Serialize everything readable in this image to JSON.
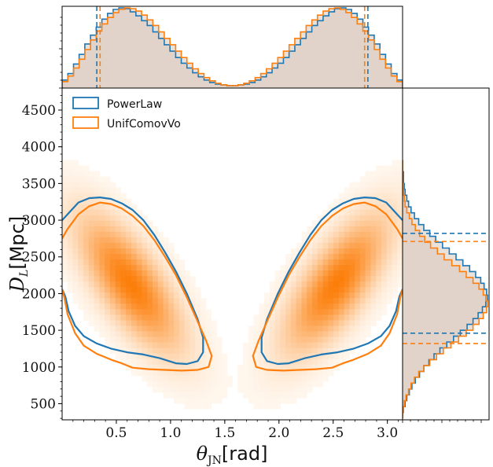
{
  "chart_data": {
    "type": "corner-plot",
    "colors": {
      "powerlaw": "#1f77b4",
      "unifcomovvo": "#ff7f0e",
      "fill": "#d8c8bc"
    },
    "main": {
      "type": "heatmap-contour",
      "xlabel_symbol": "θ",
      "xlabel_sub": "JN",
      "xlabel_unit": "[rad]",
      "ylabel_symbol": "D",
      "ylabel_sub": "L",
      "ylabel_unit": "[Mpc]",
      "xlim": [
        0.0,
        3.14
      ],
      "ylim": [
        280,
        4800
      ],
      "xticks": [
        0.5,
        1.0,
        1.5,
        2.0,
        2.5,
        3.0
      ],
      "xtick_labels": [
        "0.5",
        "1.0",
        "1.5",
        "2.0",
        "2.5",
        "3.0"
      ],
      "yticks": [
        500,
        1000,
        1500,
        2000,
        2500,
        3000,
        3500,
        4000,
        4500
      ],
      "ytick_labels": [
        "500",
        "1000",
        "1500",
        "2000",
        "2500",
        "3000",
        "3500",
        "4000",
        "4500"
      ],
      "density_peaks": [
        {
          "theta": 0.63,
          "dl": 2130
        },
        {
          "theta": 2.53,
          "dl": 2130
        }
      ],
      "contours": [
        {
          "series": "PowerLaw",
          "lobe": "left",
          "points": [
            [
              0.0,
              3000
            ],
            [
              0.05,
              3080
            ],
            [
              0.15,
              3240
            ],
            [
              0.25,
              3300
            ],
            [
              0.35,
              3310
            ],
            [
              0.45,
              3290
            ],
            [
              0.55,
              3230
            ],
            [
              0.65,
              3140
            ],
            [
              0.75,
              3000
            ],
            [
              0.85,
              2800
            ],
            [
              0.95,
              2560
            ],
            [
              1.05,
              2300
            ],
            [
              1.15,
              2000
            ],
            [
              1.25,
              1650
            ],
            [
              1.3,
              1400
            ],
            [
              1.3,
              1200
            ],
            [
              1.25,
              1080
            ],
            [
              1.15,
              1040
            ],
            [
              1.05,
              1050
            ],
            [
              0.9,
              1120
            ],
            [
              0.75,
              1170
            ],
            [
              0.6,
              1200
            ],
            [
              0.45,
              1250
            ],
            [
              0.32,
              1320
            ],
            [
              0.2,
              1420
            ],
            [
              0.12,
              1560
            ],
            [
              0.06,
              1760
            ],
            [
              0.03,
              1960
            ],
            [
              0.0,
              2060
            ]
          ]
        },
        {
          "series": "PowerLaw",
          "lobe": "right",
          "points": [
            [
              3.14,
              3000
            ],
            [
              3.09,
              3080
            ],
            [
              2.99,
              3240
            ],
            [
              2.89,
              3300
            ],
            [
              2.79,
              3310
            ],
            [
              2.69,
              3290
            ],
            [
              2.59,
              3230
            ],
            [
              2.49,
              3140
            ],
            [
              2.39,
              3000
            ],
            [
              2.29,
              2800
            ],
            [
              2.19,
              2560
            ],
            [
              2.09,
              2300
            ],
            [
              1.99,
              2000
            ],
            [
              1.89,
              1650
            ],
            [
              1.84,
              1400
            ],
            [
              1.84,
              1200
            ],
            [
              1.89,
              1080
            ],
            [
              1.99,
              1040
            ],
            [
              2.09,
              1050
            ],
            [
              2.24,
              1120
            ],
            [
              2.39,
              1170
            ],
            [
              2.54,
              1200
            ],
            [
              2.69,
              1250
            ],
            [
              2.82,
              1320
            ],
            [
              2.94,
              1420
            ],
            [
              3.02,
              1560
            ],
            [
              3.08,
              1760
            ],
            [
              3.11,
              1960
            ],
            [
              3.14,
              2060
            ]
          ]
        },
        {
          "series": "UnifComovVo",
          "lobe": "left",
          "points": [
            [
              0.0,
              2750
            ],
            [
              0.05,
              2880
            ],
            [
              0.15,
              3080
            ],
            [
              0.25,
              3190
            ],
            [
              0.35,
              3240
            ],
            [
              0.45,
              3220
            ],
            [
              0.55,
              3160
            ],
            [
              0.65,
              3060
            ],
            [
              0.75,
              2920
            ],
            [
              0.85,
              2730
            ],
            [
              0.95,
              2500
            ],
            [
              1.05,
              2250
            ],
            [
              1.15,
              1950
            ],
            [
              1.25,
              1620
            ],
            [
              1.33,
              1350
            ],
            [
              1.38,
              1150
            ],
            [
              1.35,
              1000
            ],
            [
              1.25,
              960
            ],
            [
              1.1,
              950
            ],
            [
              0.95,
              960
            ],
            [
              0.8,
              970
            ],
            [
              0.65,
              990
            ],
            [
              0.55,
              1050
            ],
            [
              0.45,
              1100
            ],
            [
              0.32,
              1180
            ],
            [
              0.2,
              1290
            ],
            [
              0.12,
              1460
            ],
            [
              0.05,
              1720
            ],
            [
              0.02,
              1950
            ],
            [
              0.0,
              2060
            ]
          ]
        },
        {
          "series": "UnifComovVo",
          "lobe": "right",
          "points": [
            [
              3.14,
              2750
            ],
            [
              3.09,
              2880
            ],
            [
              2.99,
              3080
            ],
            [
              2.89,
              3190
            ],
            [
              2.79,
              3240
            ],
            [
              2.69,
              3220
            ],
            [
              2.59,
              3160
            ],
            [
              2.49,
              3060
            ],
            [
              2.39,
              2920
            ],
            [
              2.29,
              2730
            ],
            [
              2.19,
              2500
            ],
            [
              2.09,
              2250
            ],
            [
              1.99,
              1950
            ],
            [
              1.89,
              1620
            ],
            [
              1.81,
              1350
            ],
            [
              1.76,
              1150
            ],
            [
              1.79,
              1000
            ],
            [
              1.89,
              960
            ],
            [
              2.04,
              950
            ],
            [
              2.19,
              960
            ],
            [
              2.34,
              970
            ],
            [
              2.49,
              990
            ],
            [
              2.59,
              1050
            ],
            [
              2.69,
              1100
            ],
            [
              2.82,
              1180
            ],
            [
              2.94,
              1290
            ],
            [
              3.02,
              1460
            ],
            [
              3.09,
              1720
            ],
            [
              3.12,
              1950
            ],
            [
              3.14,
              2060
            ]
          ]
        }
      ]
    },
    "top": {
      "type": "histogram",
      "axis": "theta_jn",
      "xlim": [
        0.0,
        3.14
      ],
      "ylim": [
        0,
        1.0
      ],
      "bin_centers": [
        0.026,
        0.079,
        0.131,
        0.183,
        0.236,
        0.288,
        0.34,
        0.393,
        0.445,
        0.497,
        0.55,
        0.602,
        0.654,
        0.707,
        0.759,
        0.811,
        0.864,
        0.916,
        0.968,
        1.021,
        1.073,
        1.125,
        1.178,
        1.23,
        1.282,
        1.335,
        1.387,
        1.439,
        1.492,
        1.544,
        1.596,
        1.649,
        1.701,
        1.753,
        1.806,
        1.858,
        1.91,
        1.963,
        2.015,
        2.067,
        2.12,
        2.172,
        2.224,
        2.277,
        2.329,
        2.381,
        2.434,
        2.486,
        2.538,
        2.591,
        2.643,
        2.695,
        2.748,
        2.8,
        2.852,
        2.905,
        2.957,
        3.009,
        3.062,
        3.114
      ],
      "series": [
        {
          "name": "PowerLaw",
          "values": [
            0.1,
            0.18,
            0.3,
            0.42,
            0.55,
            0.66,
            0.76,
            0.86,
            0.93,
            0.98,
            1.0,
            0.99,
            0.95,
            0.9,
            0.84,
            0.78,
            0.7,
            0.62,
            0.54,
            0.46,
            0.38,
            0.31,
            0.25,
            0.19,
            0.14,
            0.1,
            0.07,
            0.05,
            0.04,
            0.03,
            0.03,
            0.04,
            0.05,
            0.07,
            0.1,
            0.14,
            0.19,
            0.25,
            0.31,
            0.38,
            0.46,
            0.54,
            0.62,
            0.7,
            0.78,
            0.84,
            0.9,
            0.95,
            0.99,
            1.0,
            0.98,
            0.93,
            0.86,
            0.76,
            0.66,
            0.55,
            0.42,
            0.3,
            0.18,
            0.1
          ]
        },
        {
          "name": "UnifComovVo",
          "values": [
            0.08,
            0.15,
            0.25,
            0.36,
            0.48,
            0.6,
            0.71,
            0.8,
            0.88,
            0.94,
            0.98,
            1.0,
            0.99,
            0.96,
            0.91,
            0.85,
            0.78,
            0.7,
            0.62,
            0.54,
            0.46,
            0.38,
            0.31,
            0.24,
            0.18,
            0.13,
            0.09,
            0.06,
            0.04,
            0.03,
            0.03,
            0.04,
            0.06,
            0.09,
            0.13,
            0.18,
            0.24,
            0.31,
            0.38,
            0.46,
            0.54,
            0.62,
            0.7,
            0.78,
            0.85,
            0.91,
            0.96,
            0.99,
            1.0,
            0.98,
            0.94,
            0.88,
            0.8,
            0.71,
            0.6,
            0.48,
            0.36,
            0.25,
            0.15,
            0.08
          ]
        }
      ],
      "quantile_lines": [
        {
          "series": "PowerLaw",
          "values": [
            0.32,
            2.82
          ]
        },
        {
          "series": "UnifComovVo",
          "values": [
            0.35,
            2.79
          ]
        }
      ]
    },
    "right": {
      "type": "histogram",
      "orientation": "horizontal",
      "axis": "d_l",
      "ylim": [
        280,
        4800
      ],
      "xlim": [
        0,
        1.0
      ],
      "bin_centers": [
        340,
        420,
        500,
        580,
        660,
        740,
        820,
        900,
        980,
        1060,
        1140,
        1220,
        1300,
        1380,
        1460,
        1540,
        1620,
        1700,
        1780,
        1860,
        1940,
        2020,
        2100,
        2180,
        2260,
        2340,
        2420,
        2500,
        2580,
        2660,
        2740,
        2820,
        2900,
        2980,
        3060,
        3140,
        3220,
        3300,
        3380,
        3460,
        3540,
        3620,
        3700,
        3780
      ],
      "series": [
        {
          "name": "PowerLaw",
          "values": [
            0.0,
            0.01,
            0.03,
            0.05,
            0.08,
            0.11,
            0.15,
            0.2,
            0.25,
            0.31,
            0.37,
            0.44,
            0.52,
            0.6,
            0.68,
            0.76,
            0.83,
            0.89,
            0.94,
            0.98,
            1.0,
            0.99,
            0.96,
            0.92,
            0.86,
            0.79,
            0.71,
            0.63,
            0.55,
            0.47,
            0.39,
            0.32,
            0.25,
            0.19,
            0.14,
            0.1,
            0.07,
            0.05,
            0.03,
            0.02,
            0.01,
            0.01,
            0.0,
            0.0
          ]
        },
        {
          "name": "UnifComovVo",
          "values": [
            0.0,
            0.01,
            0.02,
            0.04,
            0.07,
            0.1,
            0.14,
            0.19,
            0.25,
            0.32,
            0.4,
            0.48,
            0.57,
            0.66,
            0.75,
            0.83,
            0.9,
            0.95,
            0.99,
            1.0,
            0.98,
            0.95,
            0.9,
            0.83,
            0.75,
            0.67,
            0.58,
            0.49,
            0.41,
            0.33,
            0.26,
            0.2,
            0.15,
            0.11,
            0.08,
            0.05,
            0.03,
            0.02,
            0.01,
            0.01,
            0.0,
            0.0,
            0.0,
            0.0
          ]
        }
      ],
      "quantile_lines": [
        {
          "series": "PowerLaw",
          "values": [
            1460,
            2820
          ]
        },
        {
          "series": "UnifComovVo",
          "values": [
            1320,
            2710
          ]
        }
      ]
    },
    "legend": {
      "placement": "top-left",
      "entries": [
        {
          "label": "PowerLaw",
          "color": "#1f77b4"
        },
        {
          "label": "UnifComovVo",
          "color": "#ff7f0e"
        }
      ]
    }
  }
}
